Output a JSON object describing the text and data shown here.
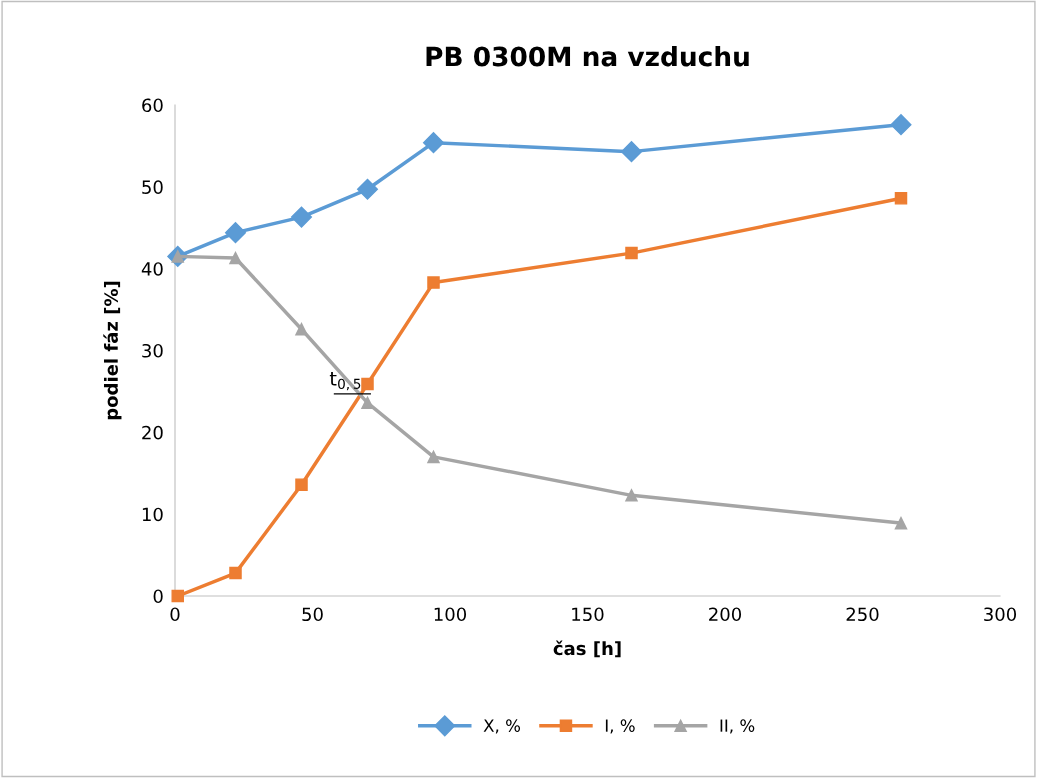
{
  "chart_data": {
    "type": "line",
    "title": "PB 0300M na vzduchu",
    "xlabel": "čas [h]",
    "ylabel": "podiel fáz [%]",
    "x": [
      1,
      22,
      46,
      70,
      94,
      166,
      264
    ],
    "series": [
      {
        "name": "X, %",
        "color": "#5b9bd5",
        "marker": "diamond",
        "values": [
          41.5,
          44.4,
          46.3,
          49.7,
          55.4,
          54.3,
          57.6
        ]
      },
      {
        "name": "I, %",
        "color": "#ed7d31",
        "marker": "square",
        "values": [
          0,
          2.8,
          13.6,
          25.9,
          38.3,
          41.9,
          48.6
        ]
      },
      {
        "name": "II, %",
        "color": "#a5a5a5",
        "marker": "triangle",
        "values": [
          41.5,
          41.3,
          32.6,
          23.6,
          17.0,
          12.3,
          8.9
        ]
      }
    ],
    "annotations": [
      {
        "text": "t$_{0,5}$",
        "x": 70,
        "y": 24.7
      }
    ],
    "xlim": [
      0,
      300
    ],
    "xticks": [
      0,
      50,
      100,
      150,
      200,
      250,
      300
    ],
    "ylim": [
      0,
      60
    ],
    "yticks": [
      0,
      10,
      20,
      30,
      40,
      50,
      60
    ],
    "grid": false,
    "legend": "bottom",
    "line_style": "solid"
  }
}
